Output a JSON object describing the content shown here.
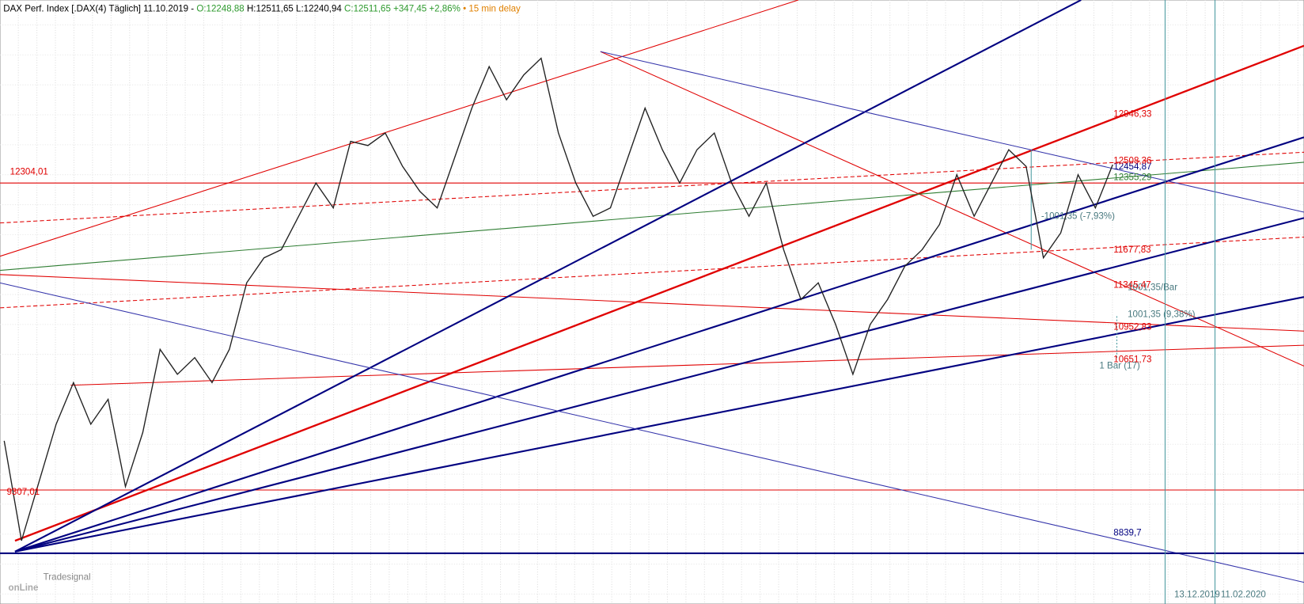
{
  "header": {
    "text": "DAX Perf. Index [.DAX(4) Täglich] 11.10.2019 -",
    "open": "O:12248,88",
    "high": "H:12511,65",
    "low": "L:12240,94",
    "close": "C:12511,65 +347,45 +2,86%",
    "delay": "• 15 min delay"
  },
  "logo": {
    "small": "Tradesignal",
    "big": "onLine"
  },
  "chart_data": {
    "type": "line",
    "series": [
      {
        "name": "DAX",
        "color": "#222222",
        "values": [
          9891,
          8957,
          9502,
          10047,
          10436,
          10047,
          10280,
          9463,
          9969,
          10747,
          10514,
          10670,
          10436,
          10747,
          11370,
          11604,
          11681,
          11993,
          12304,
          12071,
          12694,
          12655,
          12772,
          12460,
          12226,
          12071,
          12538,
          13005,
          13394,
          13083,
          13316,
          13472,
          12772,
          12304,
          11993,
          12071,
          12538,
          13005,
          12616,
          12304,
          12616,
          12772,
          12304,
          11993,
          12304,
          11681,
          11214,
          11370,
          10981,
          10514,
          10981,
          11214,
          11526,
          11681,
          11916,
          12382,
          11993,
          12304,
          12616,
          12460,
          11604,
          11837,
          12382,
          12071,
          12476
        ]
      }
    ],
    "ylim": [
      8372,
      14017
    ],
    "levels": [
      {
        "value": 12946.33,
        "label": "12946,33",
        "color": "#e00000"
      },
      {
        "value": 12454.87,
        "label": "12454,87",
        "color": "#000080"
      },
      {
        "value": 12508.36,
        "label": "12508,36",
        "color": "#e00000"
      },
      {
        "value": 12355.29,
        "label": "12355,29",
        "color": "#2e7d32"
      },
      {
        "value": 11677.83,
        "label": "11677,83",
        "color": "#e00000"
      },
      {
        "value": 11345.47,
        "label": "11345,47",
        "color": "#e00000"
      },
      {
        "value": 10952.83,
        "label": "10952,83",
        "color": "#e00000"
      },
      {
        "value": 10651.73,
        "label": "10651,73",
        "color": "#e00000"
      },
      {
        "value": 8839.7,
        "label": "8839,7",
        "color": "#000080"
      }
    ],
    "left_levels": [
      {
        "value": 12304.01,
        "label": "12304,01"
      },
      {
        "value": 9307.01,
        "label": "9307,01"
      }
    ],
    "measure": {
      "change": "-1001,35 (-7,93%)",
      "per_bar": "1001,35/Bar",
      "change2": "1001,35 (9,38%)",
      "bars": "1 Bar (17)"
    },
    "x_labels": [
      "13.12.2019",
      "11.02.2020"
    ]
  }
}
